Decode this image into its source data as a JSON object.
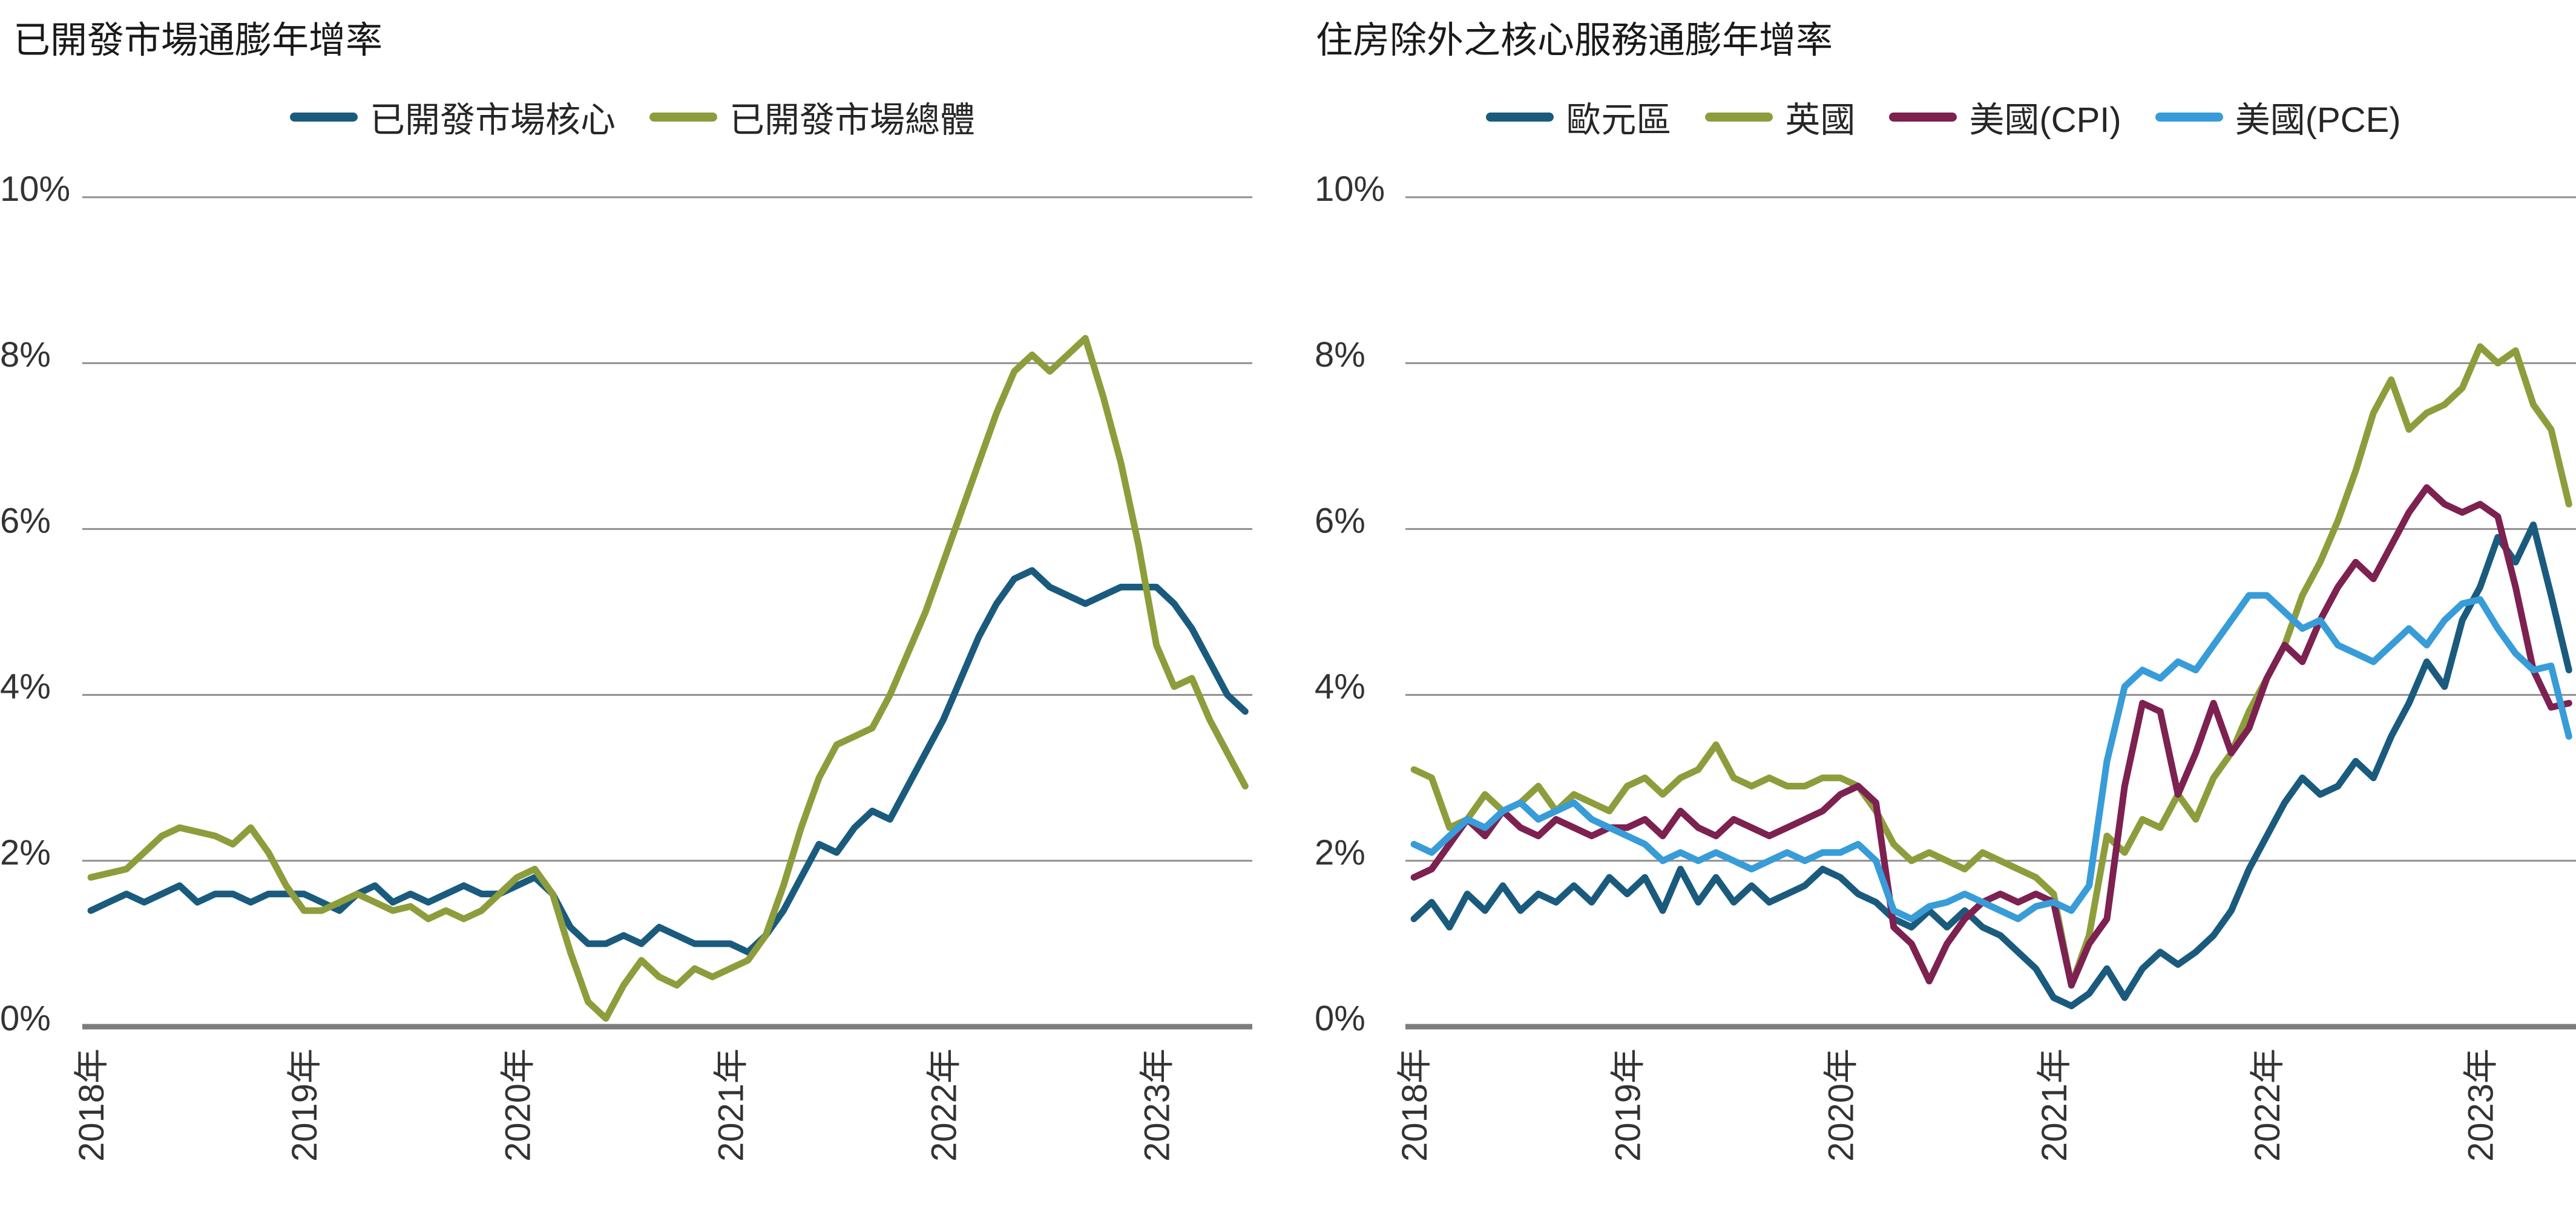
{
  "page": {
    "background": "#ffffff"
  },
  "colors": {
    "grid": "#8f8f8f",
    "axis": "#7c7c7c",
    "tick_text": "#333333",
    "title_text": "#1a1a1a",
    "dark_blue": "#1a5b7d",
    "olive_green": "#8e9d3c",
    "maroon": "#7c2150",
    "light_blue": "#389cd8"
  },
  "chart_data": [
    {
      "type": "line",
      "title": "已開發市場通膨年增率",
      "x_start_year": 2018,
      "x_interval_months": 1,
      "x_tick_values": [
        2018,
        2019,
        2020,
        2021,
        2022,
        2023
      ],
      "x_tick_labels": [
        "2018年",
        "2019年",
        "2020年",
        "2021年",
        "2022年",
        "2023年"
      ],
      "ylim": [
        0,
        10
      ],
      "y_ticks": [
        0,
        2,
        4,
        6,
        8,
        10
      ],
      "y_tick_suffix": "%",
      "grid": "horizontal",
      "legend_position": "top-center",
      "series": [
        {
          "id": "dm-core",
          "name": "已開發市場核心",
          "color": "#1a5b7d",
          "values": [
            1.4,
            1.5,
            1.6,
            1.5,
            1.6,
            1.7,
            1.5,
            1.6,
            1.6,
            1.5,
            1.6,
            1.6,
            1.6,
            1.5,
            1.4,
            1.6,
            1.7,
            1.5,
            1.6,
            1.5,
            1.6,
            1.7,
            1.6,
            1.6,
            1.7,
            1.8,
            1.6,
            1.2,
            1.0,
            1.0,
            1.1,
            1.0,
            1.2,
            1.1,
            1.0,
            1.0,
            1.0,
            0.9,
            1.1,
            1.4,
            1.8,
            2.2,
            2.1,
            2.4,
            2.6,
            2.5,
            2.9,
            3.3,
            3.7,
            4.2,
            4.7,
            5.1,
            5.4,
            5.5,
            5.3,
            5.2,
            5.1,
            5.2,
            5.3,
            5.3,
            5.3,
            5.1,
            4.8,
            4.4,
            4.0,
            3.8
          ]
        },
        {
          "id": "dm-headline",
          "name": "已開發市場總體",
          "color": "#8e9d3c",
          "values": [
            1.8,
            1.85,
            1.9,
            2.1,
            2.3,
            2.4,
            2.35,
            2.3,
            2.2,
            2.4,
            2.1,
            1.7,
            1.4,
            1.4,
            1.5,
            1.6,
            1.5,
            1.4,
            1.45,
            1.3,
            1.4,
            1.3,
            1.4,
            1.6,
            1.8,
            1.9,
            1.6,
            0.9,
            0.3,
            0.1,
            0.5,
            0.8,
            0.6,
            0.5,
            0.7,
            0.6,
            0.7,
            0.8,
            1.1,
            1.7,
            2.4,
            3.0,
            3.4,
            3.5,
            3.6,
            4.0,
            4.5,
            5.0,
            5.6,
            6.2,
            6.8,
            7.4,
            7.9,
            8.1,
            7.9,
            8.1,
            8.3,
            7.6,
            6.8,
            5.8,
            4.6,
            4.1,
            4.2,
            3.7,
            3.3,
            2.9
          ]
        }
      ]
    },
    {
      "type": "line",
      "title": "住房除外之核心服務通膨年增率",
      "x_start_year": 2018,
      "x_interval_months": 1,
      "x_tick_values": [
        2018,
        2019,
        2020,
        2021,
        2022,
        2023
      ],
      "x_tick_labels": [
        "2018年",
        "2019年",
        "2020年",
        "2021年",
        "2022年",
        "2023年"
      ],
      "ylim": [
        0,
        10
      ],
      "y_ticks": [
        0,
        2,
        4,
        6,
        8,
        10
      ],
      "y_tick_suffix": "%",
      "grid": "horizontal",
      "legend_position": "top-center",
      "series": [
        {
          "id": "euro-area",
          "name": "歐元區",
          "color": "#1a5b7d",
          "values": [
            1.3,
            1.5,
            1.2,
            1.6,
            1.4,
            1.7,
            1.4,
            1.6,
            1.5,
            1.7,
            1.5,
            1.8,
            1.6,
            1.8,
            1.4,
            1.9,
            1.5,
            1.8,
            1.5,
            1.7,
            1.5,
            1.6,
            1.7,
            1.9,
            1.8,
            1.6,
            1.5,
            1.3,
            1.2,
            1.4,
            1.2,
            1.4,
            1.2,
            1.1,
            0.9,
            0.7,
            0.35,
            0.25,
            0.4,
            0.7,
            0.35,
            0.7,
            0.9,
            0.75,
            0.9,
            1.1,
            1.4,
            1.9,
            2.3,
            2.7,
            3.0,
            2.8,
            2.9,
            3.2,
            3.0,
            3.5,
            3.9,
            4.4,
            4.1,
            4.9,
            5.3,
            5.9,
            5.6,
            6.05,
            5.2,
            4.3
          ]
        },
        {
          "id": "uk",
          "name": "英國",
          "color": "#8e9d3c",
          "values": [
            3.1,
            3.0,
            2.4,
            2.5,
            2.8,
            2.6,
            2.7,
            2.9,
            2.6,
            2.8,
            2.7,
            2.6,
            2.9,
            3.0,
            2.8,
            3.0,
            3.1,
            3.4,
            3.0,
            2.9,
            3.0,
            2.9,
            2.9,
            3.0,
            3.0,
            2.9,
            2.6,
            2.2,
            2.0,
            2.1,
            2.0,
            1.9,
            2.1,
            2.0,
            1.9,
            1.8,
            1.6,
            0.5,
            1.1,
            2.3,
            2.1,
            2.5,
            2.4,
            2.8,
            2.5,
            3.0,
            3.3,
            3.8,
            4.2,
            4.6,
            5.2,
            5.6,
            6.1,
            6.7,
            7.4,
            7.8,
            7.2,
            7.4,
            7.5,
            7.7,
            8.2,
            8.0,
            8.15,
            7.5,
            7.2,
            6.3
          ]
        },
        {
          "id": "us-cpi",
          "name": "美國(CPI)",
          "color": "#7c2150",
          "values": [
            1.8,
            1.9,
            2.2,
            2.5,
            2.3,
            2.6,
            2.4,
            2.3,
            2.5,
            2.4,
            2.3,
            2.4,
            2.4,
            2.5,
            2.3,
            2.6,
            2.4,
            2.3,
            2.5,
            2.4,
            2.3,
            2.4,
            2.5,
            2.6,
            2.8,
            2.9,
            2.7,
            1.2,
            1.0,
            0.55,
            1.0,
            1.3,
            1.5,
            1.6,
            1.5,
            1.6,
            1.5,
            0.5,
            1.0,
            1.3,
            2.9,
            3.9,
            3.8,
            2.8,
            3.3,
            3.9,
            3.3,
            3.6,
            4.2,
            4.6,
            4.4,
            4.9,
            5.3,
            5.6,
            5.4,
            5.8,
            6.2,
            6.5,
            6.3,
            6.2,
            6.3,
            6.15,
            5.3,
            4.3,
            3.85,
            3.9
          ]
        },
        {
          "id": "us-pce",
          "name": "美國(PCE)",
          "color": "#389cd8",
          "values": [
            2.2,
            2.1,
            2.3,
            2.5,
            2.4,
            2.6,
            2.7,
            2.5,
            2.6,
            2.7,
            2.5,
            2.4,
            2.3,
            2.2,
            2.0,
            2.1,
            2.0,
            2.1,
            2.0,
            1.9,
            2.0,
            2.1,
            2.0,
            2.1,
            2.1,
            2.2,
            2.0,
            1.4,
            1.3,
            1.45,
            1.5,
            1.6,
            1.5,
            1.4,
            1.3,
            1.45,
            1.5,
            1.4,
            1.7,
            3.2,
            4.1,
            4.3,
            4.2,
            4.4,
            4.3,
            4.6,
            4.9,
            5.2,
            5.2,
            5.0,
            4.8,
            4.9,
            4.6,
            4.5,
            4.4,
            4.6,
            4.8,
            4.6,
            4.9,
            5.1,
            5.15,
            4.8,
            4.5,
            4.3,
            4.35,
            3.5
          ]
        }
      ]
    }
  ]
}
